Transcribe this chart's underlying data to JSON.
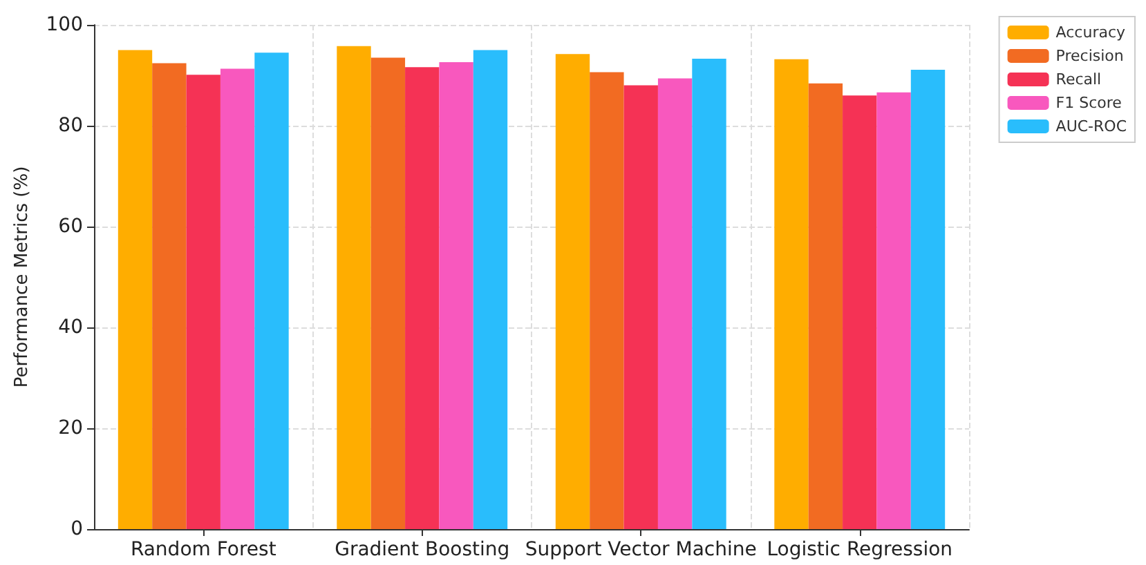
{
  "chart_data": {
    "type": "bar",
    "ylabel": "Performance Metrics (%)",
    "categories": [
      "Random Forest",
      "Gradient Boosting",
      "Support Vector Machine",
      "Logistic Regression"
    ],
    "series": [
      {
        "name": "Accuracy",
        "color": "#ffad00",
        "values": [
          95.0,
          95.8,
          94.2,
          93.2
        ]
      },
      {
        "name": "Precision",
        "color": "#f26b22",
        "values": [
          92.4,
          93.5,
          90.6,
          88.4
        ]
      },
      {
        "name": "Recall",
        "color": "#f53255",
        "values": [
          90.1,
          91.6,
          88.0,
          86.0
        ]
      },
      {
        "name": "F1 Score",
        "color": "#f858be",
        "values": [
          91.3,
          92.6,
          89.4,
          86.6
        ]
      },
      {
        "name": "AUC-ROC",
        "color": "#29bdfc",
        "values": [
          94.5,
          95.0,
          93.3,
          91.1
        ]
      }
    ],
    "ylim": [
      0,
      100
    ],
    "yticks": [
      0,
      20,
      40,
      60,
      80,
      100
    ],
    "grid": true,
    "legend": "top right"
  }
}
